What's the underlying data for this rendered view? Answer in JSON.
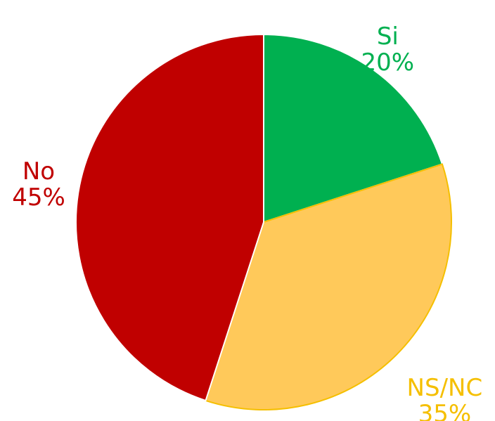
{
  "chart_data": {
    "type": "pie",
    "categories": [
      "Si",
      "NS/NC",
      "No"
    ],
    "values": [
      20,
      35,
      45
    ],
    "value_labels": [
      "20%",
      "35%",
      "45%"
    ],
    "colors": [
      "#00b050",
      "#ffc95a",
      "#c00000"
    ],
    "label_colors": [
      "#00b050",
      "#f5bf00",
      "#c00000"
    ]
  }
}
